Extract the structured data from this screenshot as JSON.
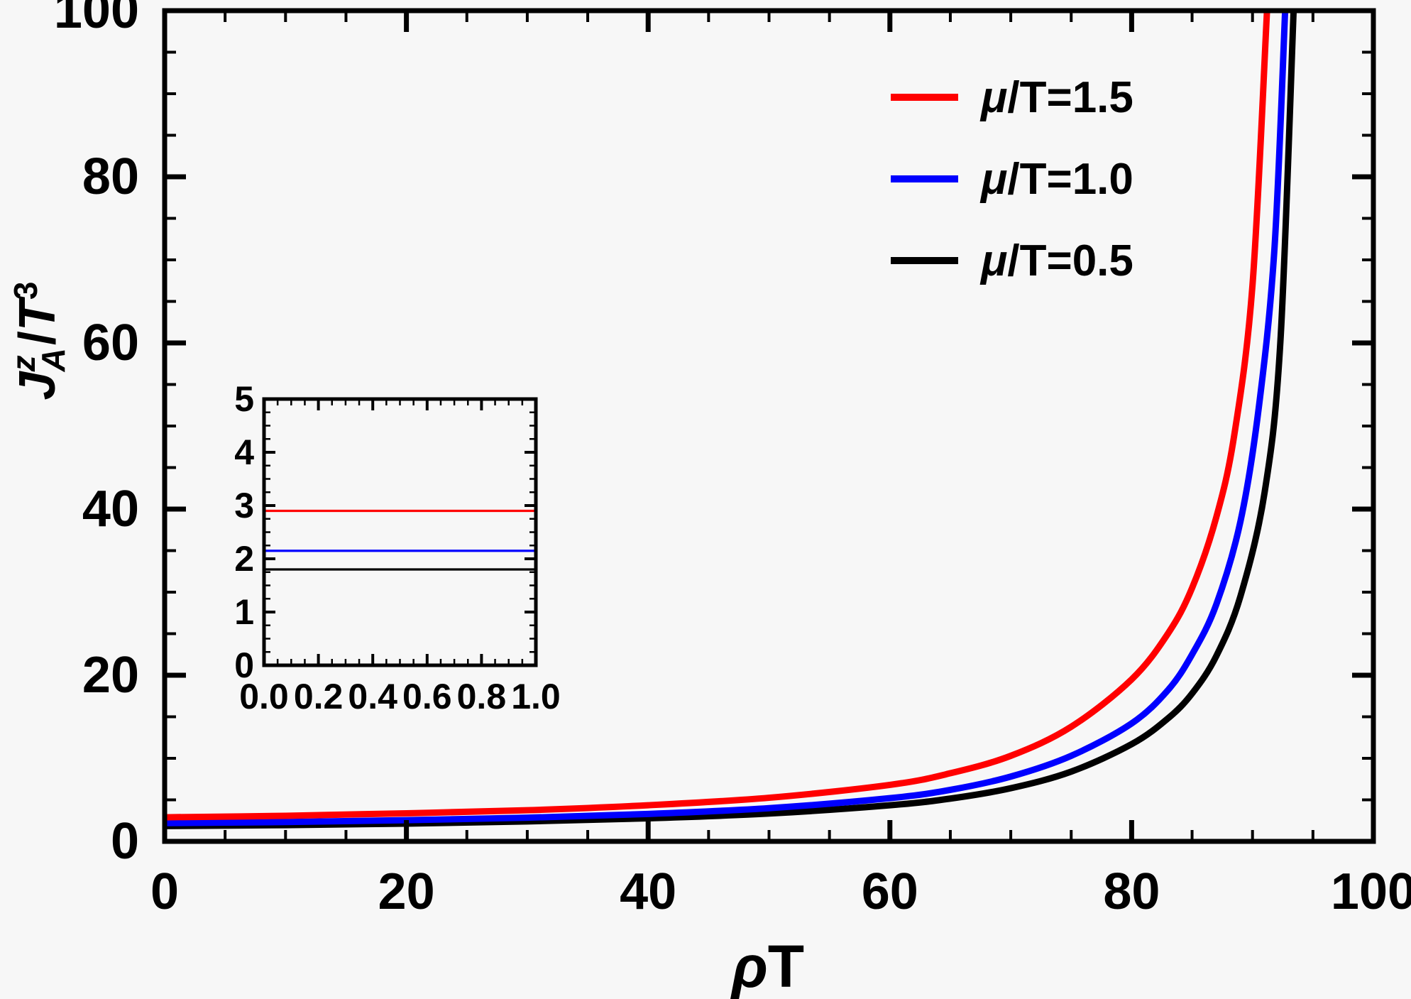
{
  "colors": {
    "red": "#ff0000",
    "blue": "#0000ff",
    "black": "#000000",
    "frame": "#000000",
    "background": "#f7f7f7"
  },
  "axis_labels": {
    "x": {
      "rho": "ρ",
      "T": "T"
    },
    "y": {
      "J": "J",
      "sup": "z",
      "sub": "A",
      "slash": "/",
      "T": "T",
      "exp": "3"
    }
  },
  "legend": {
    "position": "top-right",
    "items": [
      {
        "prefix": "μ",
        "rest": "/T=1.5",
        "color": "#ff0000"
      },
      {
        "prefix": "μ",
        "rest": "/T=1.0",
        "color": "#0000ff"
      },
      {
        "prefix": "μ",
        "rest": "/T=0.5",
        "color": "#000000"
      }
    ]
  },
  "chart_data": [
    {
      "id": "main",
      "type": "line",
      "title": "",
      "xlabel": "ρT",
      "ylabel": "J_A^z / T^3",
      "xlim": [
        0,
        100
      ],
      "ylim": [
        0,
        100
      ],
      "x_major": 20,
      "x_minor": 5,
      "y_major": 20,
      "y_minor": 5,
      "grid": false,
      "x_tick_labels": [
        "0",
        "20",
        "40",
        "60",
        "80",
        "100"
      ],
      "y_tick_labels": [
        "0",
        "20",
        "40",
        "60",
        "80",
        "100"
      ],
      "series": [
        {
          "name": "μ/T=0.5",
          "color": "#000000",
          "points": [
            [
              0,
              1.85
            ],
            [
              10,
              1.96
            ],
            [
              20,
              2.14
            ],
            [
              30,
              2.4
            ],
            [
              40,
              2.78
            ],
            [
              50,
              3.35
            ],
            [
              60,
              4.35
            ],
            [
              65,
              5.15
            ],
            [
              70,
              6.4
            ],
            [
              75,
              8.4
            ],
            [
              80,
              11.7
            ],
            [
              83,
              14.8
            ],
            [
              85,
              17.8
            ],
            [
              87,
              22.3
            ],
            [
              89,
              29.5
            ],
            [
              91,
              42
            ],
            [
              92.3,
              60
            ],
            [
              93.4,
              100
            ]
          ]
        },
        {
          "name": "μ/T=1.0",
          "color": "#0000ff",
          "points": [
            [
              0,
              2.2
            ],
            [
              10,
              2.33
            ],
            [
              20,
              2.55
            ],
            [
              30,
              2.85
            ],
            [
              40,
              3.3
            ],
            [
              50,
              4.0
            ],
            [
              60,
              5.2
            ],
            [
              65,
              6.2
            ],
            [
              70,
              7.8
            ],
            [
              75,
              10.3
            ],
            [
              80,
              14.2
            ],
            [
              83,
              18.2
            ],
            [
              85,
              22.5
            ],
            [
              87,
              28.5
            ],
            [
              89,
              38.5
            ],
            [
              90.5,
              52
            ],
            [
              91.8,
              71
            ],
            [
              92.7,
              100
            ]
          ]
        },
        {
          "name": "μ/T=1.5",
          "color": "#ff0000",
          "points": [
            [
              0,
              2.9
            ],
            [
              10,
              3.08
            ],
            [
              20,
              3.38
            ],
            [
              30,
              3.75
            ],
            [
              40,
              4.35
            ],
            [
              50,
              5.25
            ],
            [
              60,
              6.8
            ],
            [
              65,
              8.2
            ],
            [
              70,
              10.3
            ],
            [
              75,
              13.8
            ],
            [
              80,
              19.5
            ],
            [
              83,
              25
            ],
            [
              85,
              30.5
            ],
            [
              87,
              39
            ],
            [
              88.5,
              49
            ],
            [
              90,
              67
            ],
            [
              91.2,
              100
            ]
          ]
        }
      ]
    },
    {
      "id": "inset",
      "type": "line",
      "title": "",
      "xlabel": "",
      "ylabel": "",
      "xlim": [
        0,
        1
      ],
      "ylim": [
        0,
        5
      ],
      "x_major": 0.2,
      "x_minor": 0.05,
      "y_major": 1,
      "y_minor": 0.25,
      "grid": false,
      "x_tick_labels": [
        "0.0",
        "0.2",
        "0.4",
        "0.6",
        "0.8",
        "1.0"
      ],
      "y_tick_labels": [
        "0",
        "1",
        "2",
        "3",
        "4",
        "5"
      ],
      "series": [
        {
          "name": "μ/T=0.5",
          "color": "#000000",
          "points": [
            [
              0,
              1.8
            ],
            [
              1,
              1.8
            ]
          ]
        },
        {
          "name": "μ/T=1.0",
          "color": "#0000ff",
          "points": [
            [
              0,
              2.15
            ],
            [
              1,
              2.15
            ]
          ]
        },
        {
          "name": "μ/T=1.5",
          "color": "#ff0000",
          "points": [
            [
              0,
              2.9
            ],
            [
              1,
              2.9
            ]
          ]
        }
      ]
    }
  ]
}
